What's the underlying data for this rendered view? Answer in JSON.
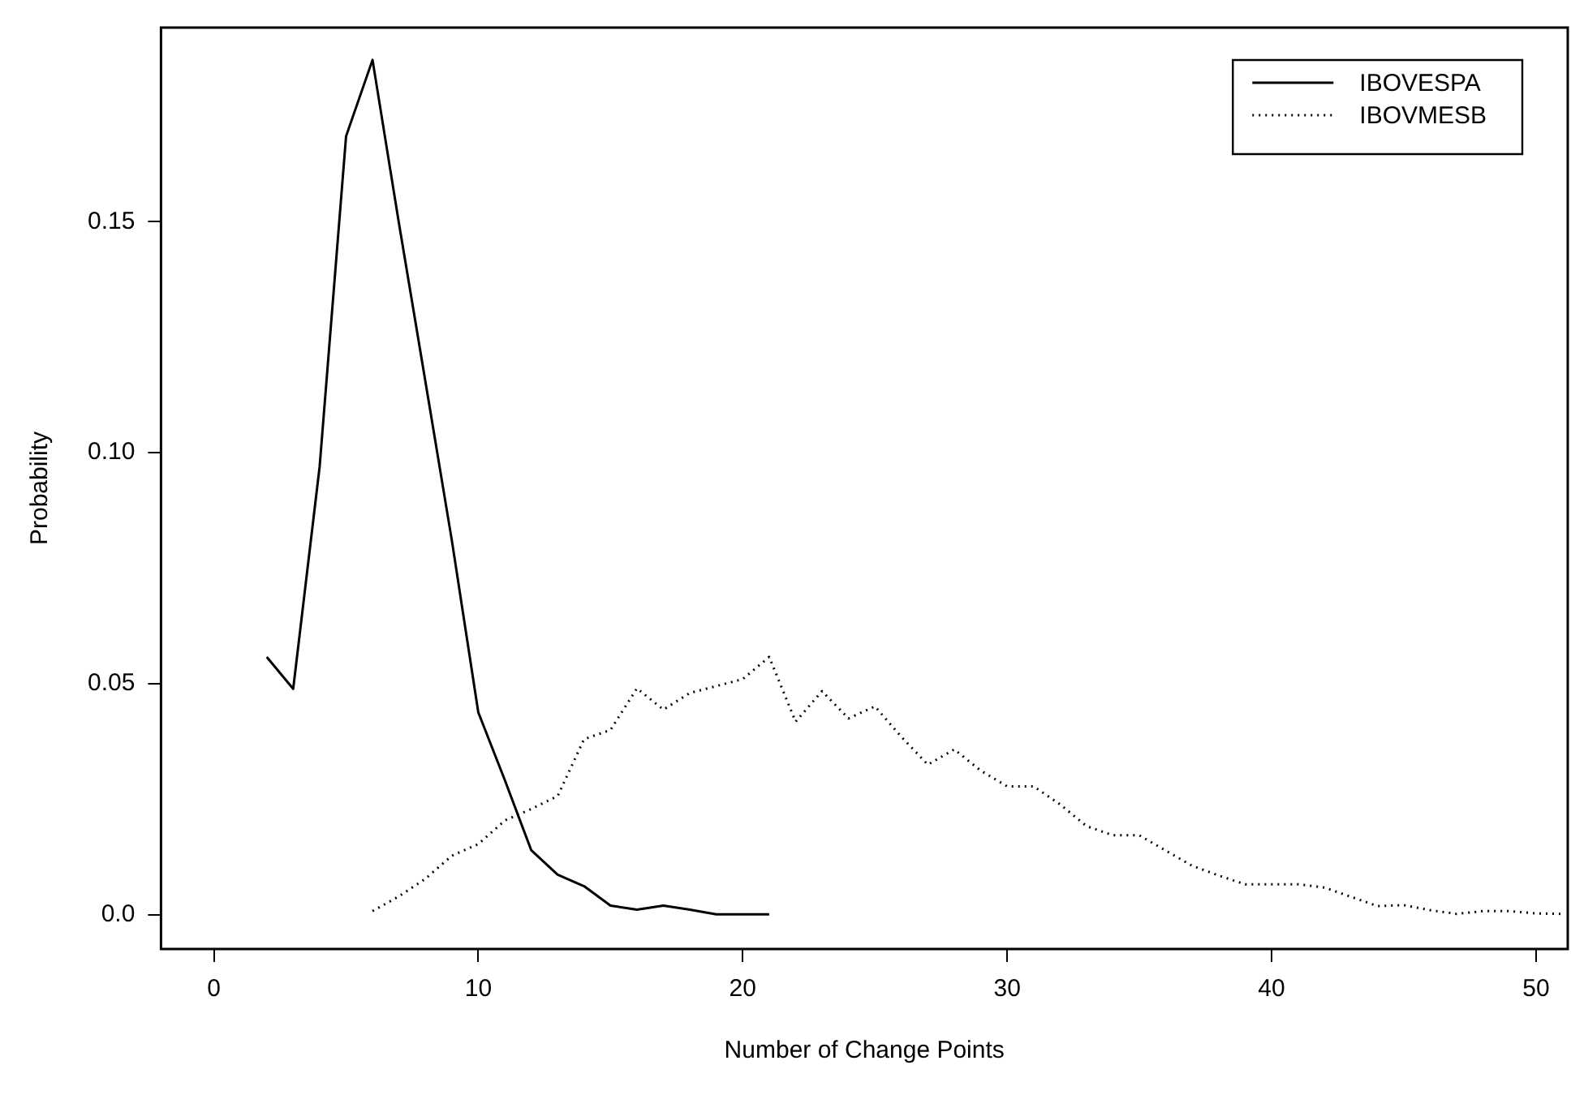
{
  "chart_data": {
    "type": "line",
    "xlabel": "Number of Change Points",
    "ylabel": "Probability",
    "xlim": [
      -2,
      51.2
    ],
    "xticks": [
      0,
      10,
      20,
      30,
      40,
      50
    ],
    "ylim": [
      -0.0074,
      0.192
    ],
    "yticks": [
      {
        "value": 0,
        "label": "0.0"
      },
      0.05,
      {
        "value": 0.1,
        "label": "0.10"
      },
      0.15
    ],
    "grid": false,
    "legend": "top right",
    "marker": "none",
    "series": [
      {
        "name": "IBOVESPA",
        "color": "#000000",
        "line_style": "solid",
        "x": [
          2,
          3,
          4,
          5,
          6,
          7,
          8,
          9,
          10,
          11,
          12,
          13,
          14,
          15,
          16,
          17,
          18,
          19,
          20,
          21
        ],
        "values": [
          0.0558,
          0.0489,
          0.097,
          0.1685,
          0.185,
          0.1496,
          0.1154,
          0.081,
          0.0438,
          0.0292,
          0.014,
          0.0087,
          0.0062,
          0.002,
          0.0011,
          0.002,
          0.0011,
          0.0001,
          0.0001,
          0.0001
        ]
      },
      {
        "name": "IBOVMESB",
        "color": "#000000",
        "line_style": "dotted",
        "x": [
          6,
          7,
          8,
          9,
          10,
          11,
          12,
          13,
          14,
          15,
          16,
          17,
          18,
          19,
          20,
          21,
          22,
          23,
          24,
          25,
          26,
          27,
          28,
          29,
          30,
          31,
          32,
          33,
          34,
          35,
          36,
          37,
          38,
          39,
          40,
          41,
          42,
          43,
          44,
          45,
          46,
          47,
          48,
          49,
          50,
          51
        ],
        "values": [
          0.0008,
          0.004,
          0.0078,
          0.0128,
          0.0153,
          0.0204,
          0.0229,
          0.0257,
          0.038,
          0.04,
          0.049,
          0.0444,
          0.048,
          0.0495,
          0.051,
          0.0558,
          0.0418,
          0.0484,
          0.0425,
          0.0451,
          0.0385,
          0.0325,
          0.0358,
          0.0312,
          0.0278,
          0.0278,
          0.0239,
          0.0192,
          0.0172,
          0.0172,
          0.0139,
          0.0106,
          0.0085,
          0.0066,
          0.0066,
          0.0066,
          0.0059,
          0.0039,
          0.0019,
          0.0021,
          0.001,
          0.0002,
          0.0008,
          0.0008,
          0.0003,
          0.0002
        ]
      }
    ]
  }
}
